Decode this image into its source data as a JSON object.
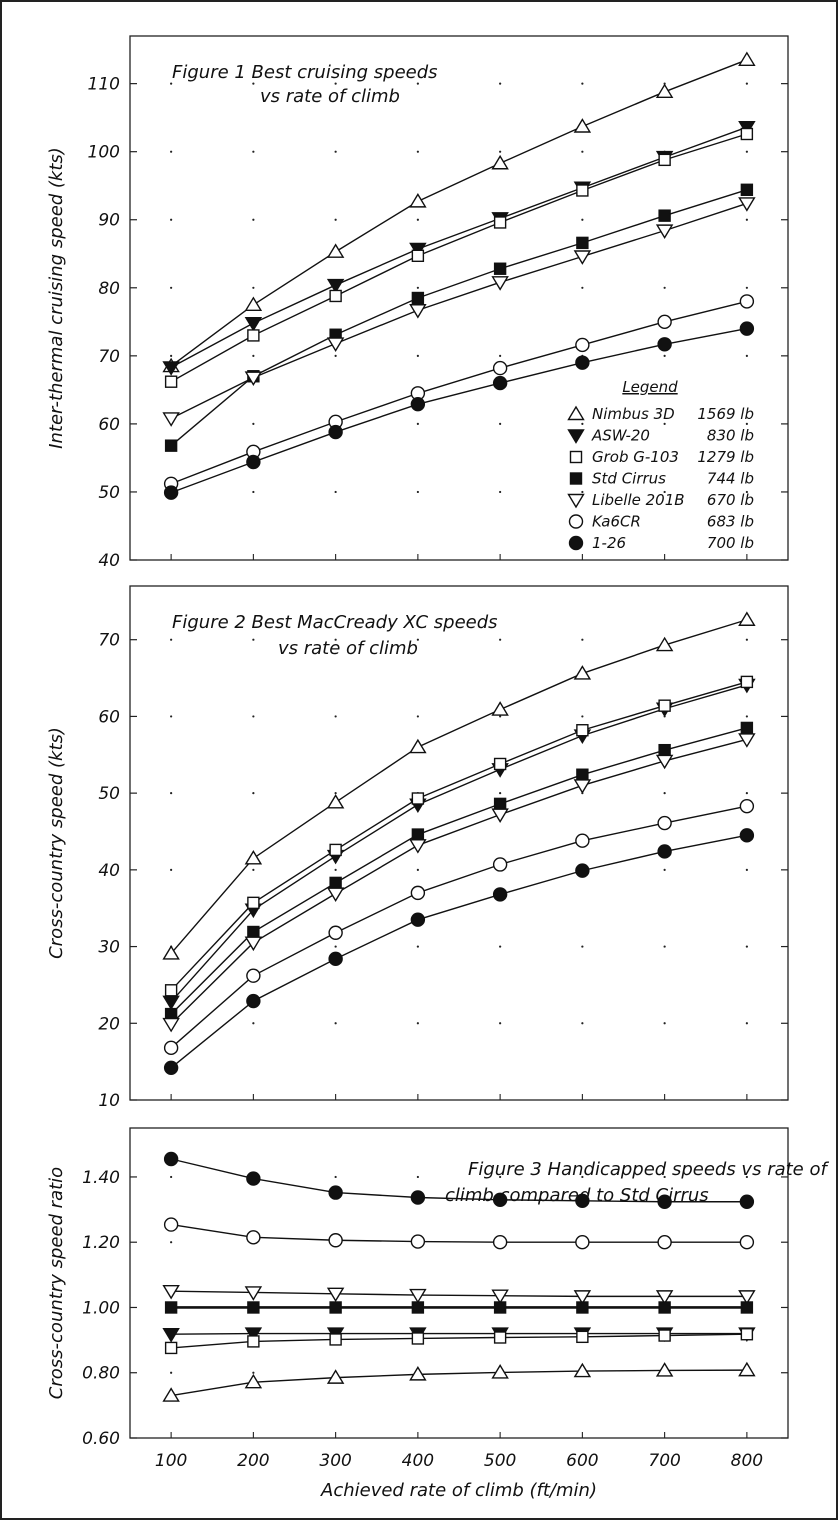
{
  "x_axis": {
    "label": "Achieved rate of climb (ft/min)",
    "ticks": [
      "100",
      "200",
      "300",
      "400",
      "500",
      "600",
      "700",
      "800"
    ]
  },
  "legend": {
    "heading": "Legend",
    "entries": [
      {
        "name": "Nimbus 3D",
        "weight": "1569 lb",
        "marker": "triangle-up-open"
      },
      {
        "name": "ASW-20",
        "weight": "830 lb",
        "marker": "triangle-down-filled"
      },
      {
        "name": "Grob G-103",
        "weight": "1279 lb",
        "marker": "square-open"
      },
      {
        "name": "Std Cirrus",
        "weight": "744 lb",
        "marker": "square-filled"
      },
      {
        "name": "Libelle 201B",
        "weight": "670 lb",
        "marker": "triangle-down-open"
      },
      {
        "name": "Ka6CR",
        "weight": "683 lb",
        "marker": "circle-open"
      },
      {
        "name": "1-26",
        "weight": "700 lb",
        "marker": "circle-filled"
      }
    ]
  },
  "chart_data": [
    {
      "type": "line",
      "title": "Figure 1   Best cruising speeds",
      "subtitle": "vs  rate of climb",
      "xlabel": "",
      "ylabel": "Inter-thermal cruising speed (kts)",
      "x": [
        100,
        200,
        300,
        400,
        500,
        600,
        700,
        800
      ],
      "xlim": [
        50,
        850
      ],
      "ylim": [
        40,
        117
      ],
      "yticks": [
        40,
        50,
        60,
        70,
        80,
        90,
        100,
        110
      ],
      "ytick_labels": [
        "40",
        "50",
        "60",
        "70",
        "80",
        "90",
        "100",
        "110"
      ],
      "grid": "dotted",
      "series": [
        {
          "name": "Nimbus 3D",
          "marker": "triangle-up-open",
          "values": [
            68.5,
            77.5,
            85.3,
            92.7,
            98.3,
            103.7,
            108.8,
            113.5
          ]
        },
        {
          "name": "ASW-20",
          "marker": "triangle-down-filled",
          "values": [
            68.3,
            74.8,
            80.4,
            85.7,
            90.2,
            94.7,
            99.2,
            103.6
          ]
        },
        {
          "name": "Grob G-103",
          "marker": "square-open",
          "values": [
            66.2,
            73.0,
            78.8,
            84.7,
            89.6,
            94.3,
            98.8,
            102.6
          ]
        },
        {
          "name": "Std Cirrus",
          "marker": "square-filled",
          "values": [
            56.8,
            67.0,
            73.1,
            78.5,
            82.8,
            86.6,
            90.6,
            94.4
          ]
        },
        {
          "name": "Libelle 201B",
          "marker": "triangle-down-open",
          "values": [
            60.8,
            66.8,
            71.8,
            76.7,
            80.8,
            84.6,
            88.4,
            92.4
          ]
        },
        {
          "name": "Ka6CR",
          "marker": "circle-open",
          "values": [
            51.2,
            55.9,
            60.3,
            64.5,
            68.2,
            71.6,
            75.0,
            78.0
          ]
        },
        {
          "name": "1-26",
          "marker": "circle-filled",
          "values": [
            49.9,
            54.4,
            58.8,
            62.9,
            66.0,
            69.0,
            71.7,
            74.0
          ]
        }
      ]
    },
    {
      "type": "line",
      "title": "Figure 2      Best MacCready XC speeds",
      "subtitle": "vs  rate of climb",
      "xlabel": "",
      "ylabel": "Cross-country speed (kts)",
      "x": [
        100,
        200,
        300,
        400,
        500,
        600,
        700,
        800
      ],
      "xlim": [
        50,
        850
      ],
      "ylim": [
        10,
        77
      ],
      "yticks": [
        10,
        20,
        30,
        40,
        50,
        60,
        70
      ],
      "ytick_labels": [
        "10",
        "20",
        "30",
        "40",
        "50",
        "60",
        "70"
      ],
      "grid": "dotted",
      "series": [
        {
          "name": "Nimbus 3D",
          "marker": "triangle-up-open",
          "values": [
            29.1,
            41.5,
            48.8,
            56.0,
            60.9,
            65.6,
            69.3,
            72.6
          ]
        },
        {
          "name": "ASW-20",
          "marker": "triangle-down-filled",
          "values": [
            22.8,
            34.8,
            41.8,
            48.5,
            53.1,
            57.5,
            61.0,
            64.1
          ]
        },
        {
          "name": "Grob G-103",
          "marker": "square-open",
          "values": [
            24.3,
            35.7,
            42.6,
            49.3,
            53.8,
            58.2,
            61.4,
            64.5
          ]
        },
        {
          "name": "Std Cirrus",
          "marker": "square-filled",
          "values": [
            21.2,
            31.9,
            38.3,
            44.6,
            48.6,
            52.4,
            55.6,
            58.5
          ]
        },
        {
          "name": "Libelle 201B",
          "marker": "triangle-down-open",
          "values": [
            19.9,
            30.5,
            36.9,
            43.2,
            47.2,
            51.0,
            54.2,
            57.0
          ]
        },
        {
          "name": "Ka6CR",
          "marker": "circle-open",
          "values": [
            16.8,
            26.2,
            31.8,
            37.0,
            40.7,
            43.8,
            46.1,
            48.3
          ]
        },
        {
          "name": "1-26",
          "marker": "circle-filled",
          "values": [
            14.2,
            22.9,
            28.4,
            33.5,
            36.8,
            39.9,
            42.4,
            44.5
          ]
        }
      ]
    },
    {
      "type": "line",
      "title": "Figure 3    Handicapped speeds vs rate of",
      "subtitle": "climb compared to Std Cirrus",
      "xlabel": "Achieved rate of climb (ft/min)",
      "ylabel": "Cross-country speed ratio",
      "x": [
        100,
        200,
        300,
        400,
        500,
        600,
        700,
        800
      ],
      "xlim": [
        50,
        850
      ],
      "ylim": [
        0.6,
        1.55
      ],
      "yticks": [
        0.6,
        0.8,
        1.0,
        1.2,
        1.4
      ],
      "ytick_labels": [
        "0.60",
        "0.80",
        "1.00",
        "1.20",
        "1.40"
      ],
      "grid": "dotted",
      "series": [
        {
          "name": "1-26",
          "marker": "circle-filled",
          "values": [
            1.455,
            1.395,
            1.352,
            1.337,
            1.33,
            1.327,
            1.324,
            1.324
          ]
        },
        {
          "name": "Ka6CR",
          "marker": "circle-open",
          "values": [
            1.254,
            1.215,
            1.206,
            1.202,
            1.2,
            1.2,
            1.2,
            1.2
          ]
        },
        {
          "name": "Libelle 201B",
          "marker": "triangle-down-open",
          "values": [
            1.05,
            1.046,
            1.042,
            1.038,
            1.036,
            1.034,
            1.034,
            1.034
          ]
        },
        {
          "name": "Std Cirrus",
          "marker": "square-filled",
          "values": [
            1.0,
            1.0,
            1.0,
            1.0,
            1.0,
            1.0,
            1.0,
            1.0
          ]
        },
        {
          "name": "ASW-20",
          "marker": "triangle-down-filled",
          "values": [
            0.918,
            0.92,
            0.92,
            0.92,
            0.92,
            0.92,
            0.92,
            0.92
          ]
        },
        {
          "name": "Grob G-103",
          "marker": "square-open",
          "values": [
            0.876,
            0.896,
            0.902,
            0.905,
            0.908,
            0.91,
            0.914,
            0.918
          ]
        },
        {
          "name": "Nimbus 3D",
          "marker": "triangle-up-open",
          "values": [
            0.73,
            0.771,
            0.785,
            0.795,
            0.801,
            0.805,
            0.807,
            0.808
          ]
        }
      ]
    }
  ]
}
